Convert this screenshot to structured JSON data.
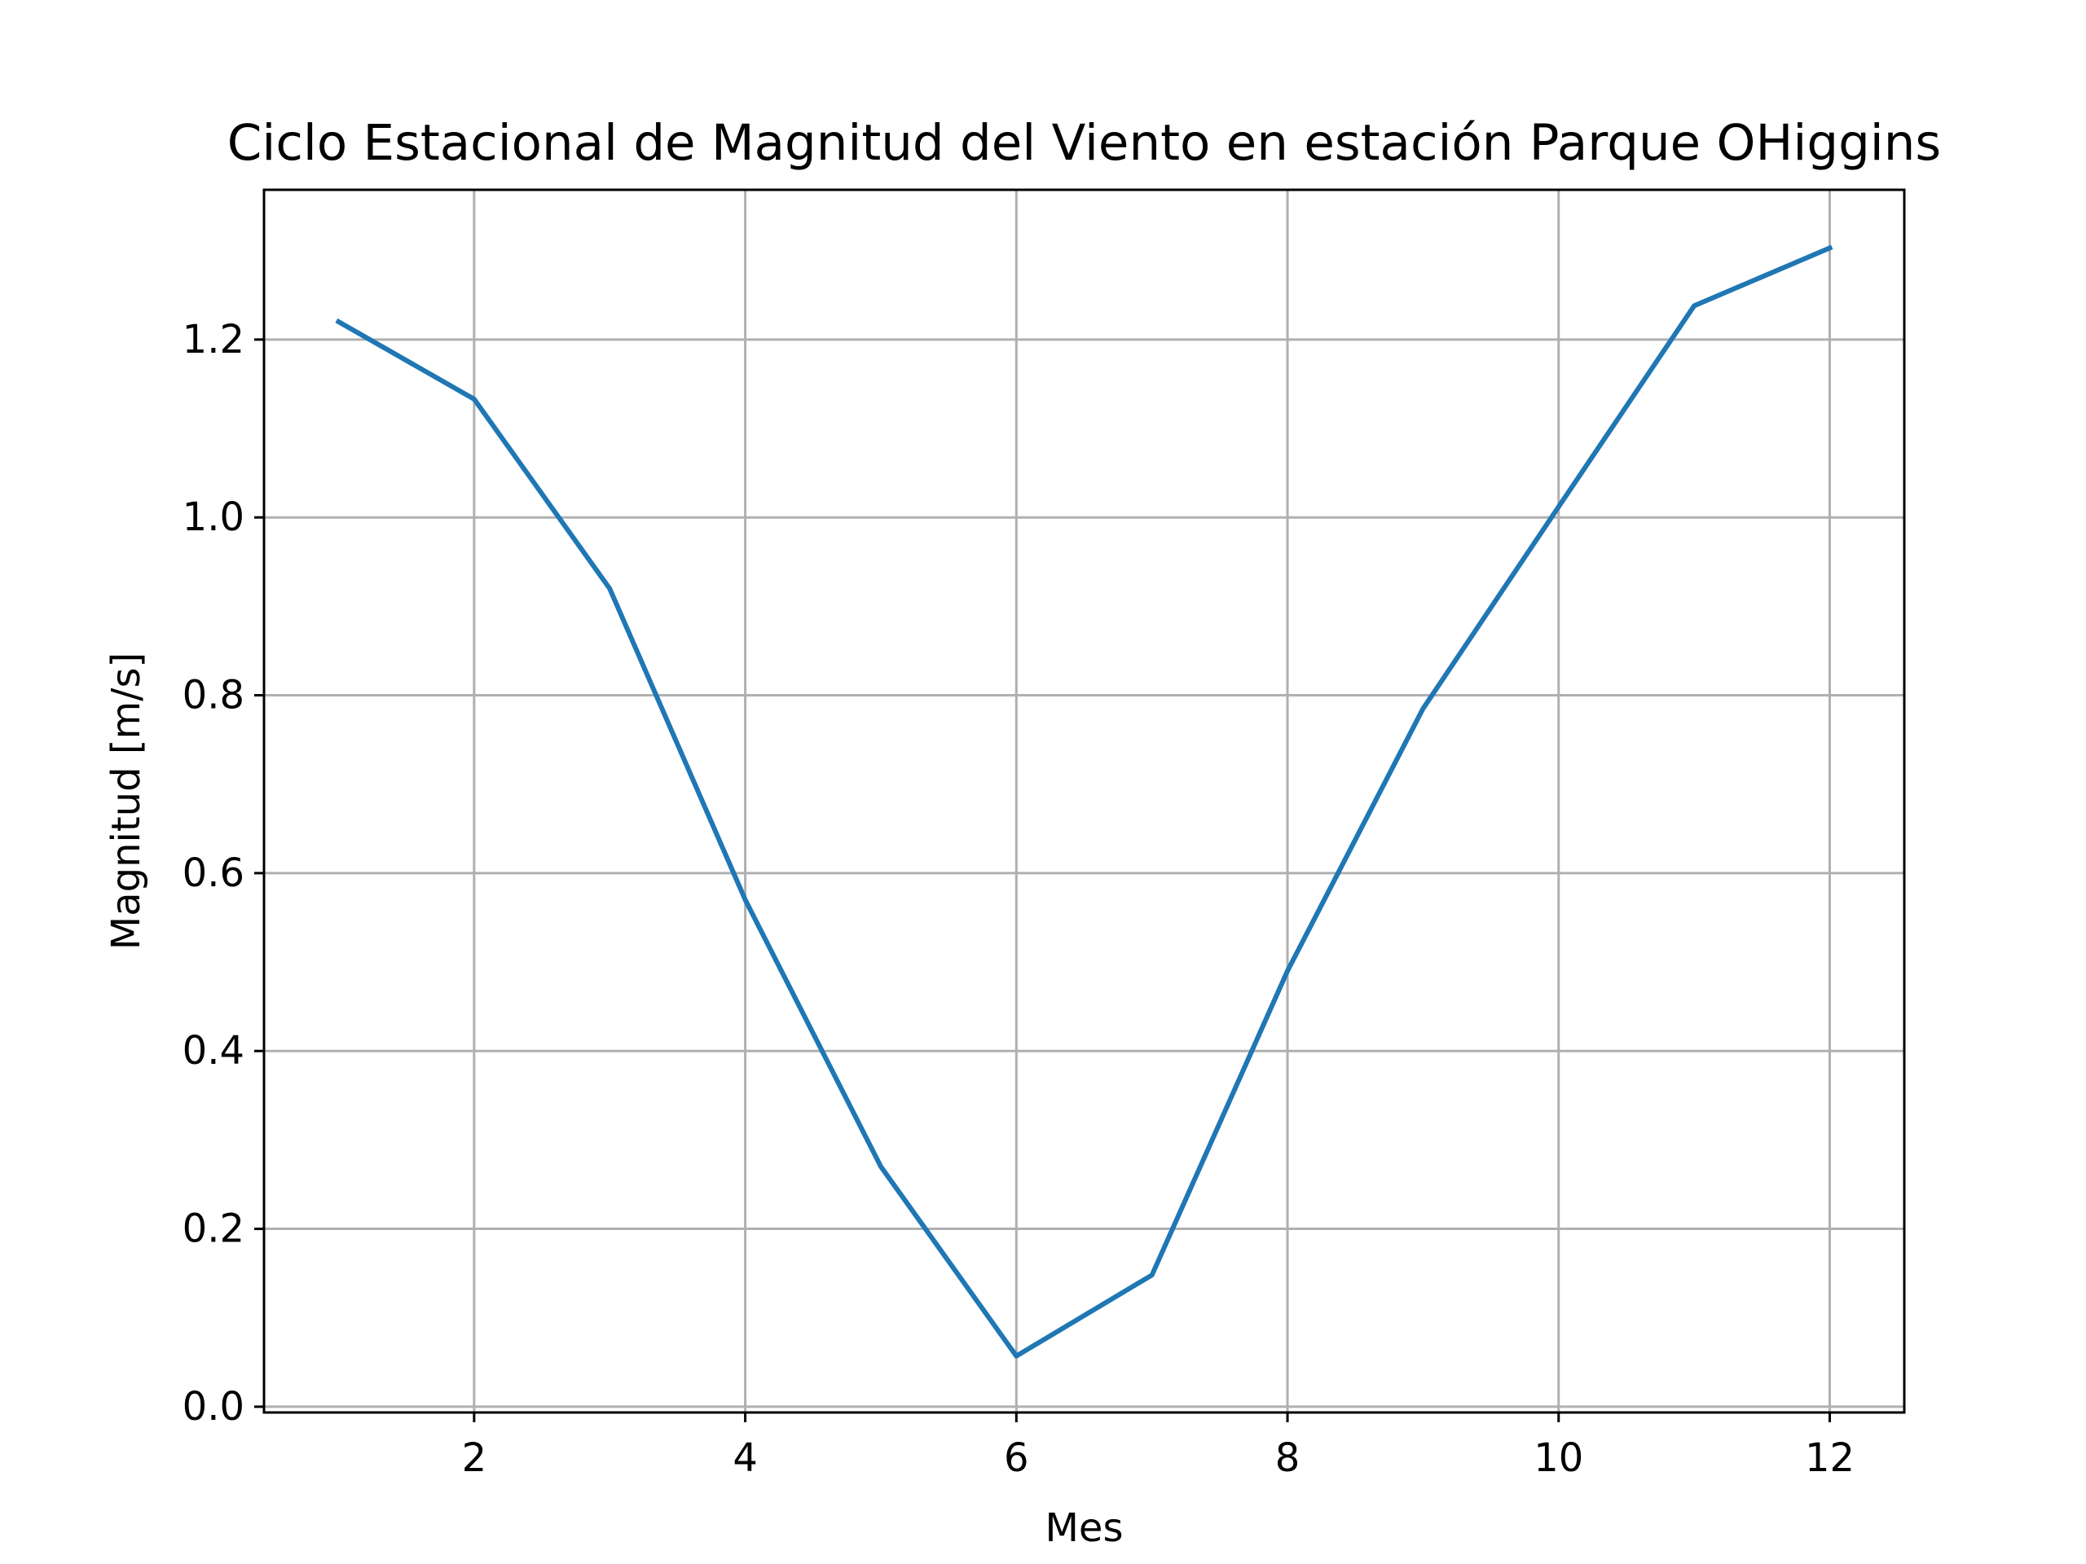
{
  "chart_data": {
    "type": "line",
    "title": "Ciclo Estacional de Magnitud del Viento en estación Parque OHiggins",
    "xlabel": "Mes",
    "ylabel": "Magnitud [m/s]",
    "x": [
      1,
      2,
      3,
      4,
      5,
      6,
      7,
      8,
      9,
      10,
      11,
      12
    ],
    "series": [
      {
        "values": [
          1.22,
          1.133,
          0.92,
          0.57,
          0.27,
          0.057,
          0.148,
          0.49,
          0.785,
          1.012,
          1.238,
          1.303
        ],
        "color": "#1f77b4"
      }
    ],
    "xlim": [
      0.45,
      12.55
    ],
    "ylim": [
      -0.0065,
      1.3684
    ],
    "xticks": [
      2,
      4,
      6,
      8,
      10,
      12
    ],
    "xtick_labels": [
      "2",
      "4",
      "6",
      "8",
      "10",
      "12"
    ],
    "yticks": [
      0.0,
      0.2,
      0.4,
      0.6,
      0.8,
      1.0,
      1.2
    ],
    "ytick_labels": [
      "0.0",
      "0.2",
      "0.4",
      "0.6",
      "0.8",
      "1.0",
      "1.2"
    ],
    "grid": true,
    "legend": false
  }
}
